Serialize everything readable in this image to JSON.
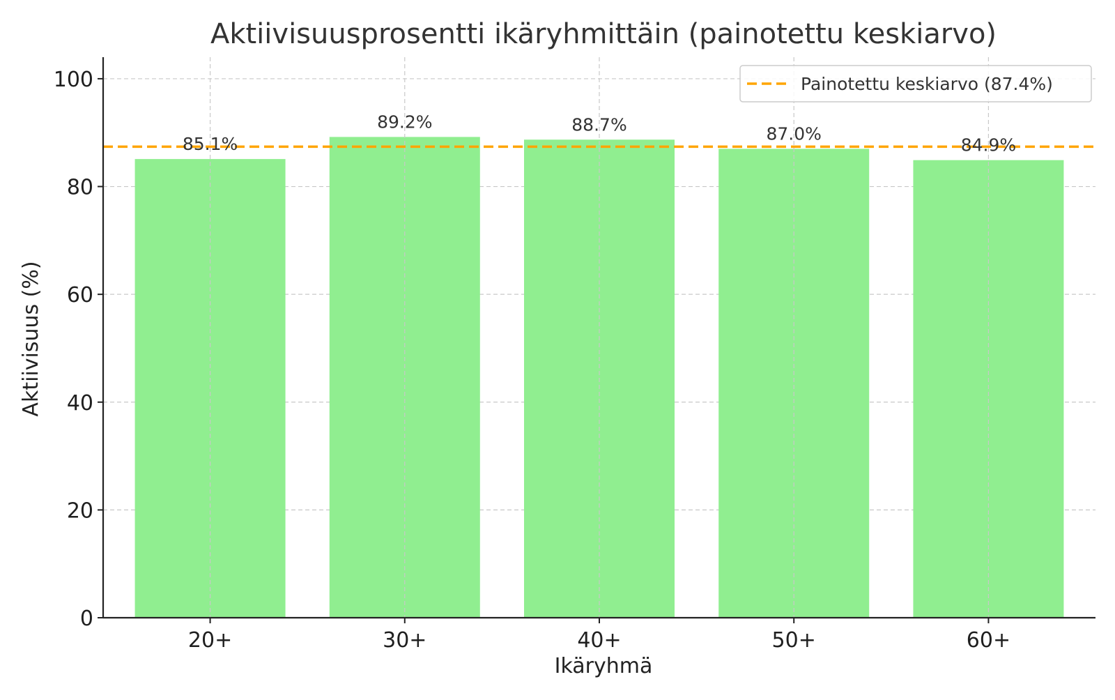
{
  "chart_data": {
    "type": "bar",
    "title": "Aktiivisuusprosentti ikäryhmittäin (painotettu keskiarvo)",
    "xlabel": "Ikäryhmä",
    "ylabel": "Aktiivisuus (%)",
    "categories": [
      "20+",
      "30+",
      "40+",
      "50+",
      "60+"
    ],
    "values": [
      85.1,
      89.2,
      88.7,
      87.0,
      84.9
    ],
    "data_labels": [
      "85.1%",
      "89.2%",
      "88.7%",
      "87.0%",
      "84.9%"
    ],
    "ylim": [
      0,
      104
    ],
    "yticks": [
      0,
      20,
      40,
      60,
      80,
      100
    ],
    "ytick_labels": [
      "0",
      "20",
      "40",
      "60",
      "80",
      "100"
    ],
    "grid": true,
    "bar_color": "#90EE90",
    "reference_line": {
      "value": 87.4,
      "label": "Painotettu keskiarvo (87.4%)",
      "color": "#FFA500",
      "style": "dashed"
    },
    "legend": {
      "placement": "top-right",
      "entries": [
        "Painotettu keskiarvo (87.4%)"
      ]
    }
  }
}
